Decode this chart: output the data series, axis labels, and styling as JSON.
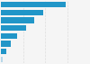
{
  "values": [
    20500,
    13500,
    10500,
    8000,
    5000,
    3200,
    1800,
    600
  ],
  "bar_color": "#2196C8",
  "last_bar_color": "#B8D8EA",
  "background_color": "#f5f5f5",
  "plot_bg_color": "#f5f5f5",
  "grid_color": "#dddddd",
  "xlim": [
    0,
    28000
  ],
  "figsize": [
    1.0,
    0.71
  ],
  "bar_height": 0.72
}
